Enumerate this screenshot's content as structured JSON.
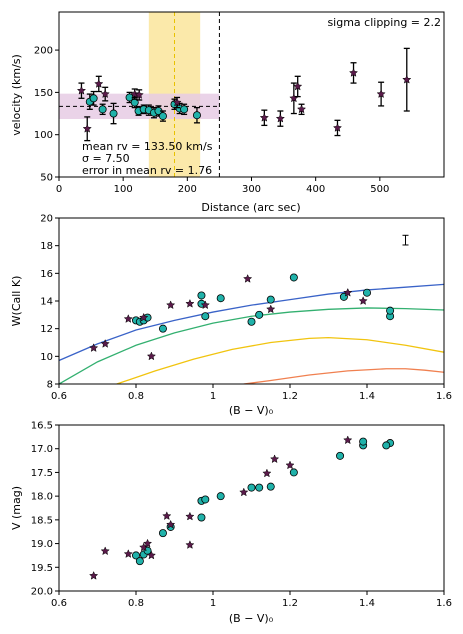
{
  "chart_data": [
    {
      "type": "scatter",
      "title": "",
      "xlabel": "Distance (arc sec)",
      "ylabel": "velocity (km/s)",
      "xlim": [
        0,
        600
      ],
      "ylim": [
        50,
        245
      ],
      "xticks": [
        0,
        100,
        200,
        300,
        400,
        500
      ],
      "yticks": [
        50,
        100,
        150,
        200
      ],
      "annotations": {
        "top_right": "sigma clipping = 2.2",
        "stats": [
          "mean rv = 133.50 km/s",
          "σ = 7.50",
          "error in mean rv = 1.76"
        ]
      },
      "mean_rv": 133.5,
      "sigma": 7.5,
      "band_low": 118.5,
      "band_high": 148.5,
      "vspan": [
        140,
        220
      ],
      "vline_mean": 180,
      "vline_cut": 250,
      "colors": {
        "circle": "#20b2aa",
        "star": "#5a1a4a",
        "band": "#e6cbe4",
        "vspan": "#fbe7a1",
        "vline": "#e8c200",
        "edge": "#000000"
      },
      "series": [
        {
          "marker": "circle",
          "points": [
            [
              48,
              139,
              9
            ],
            [
              54,
              143,
              8
            ],
            [
              68,
              130,
              6
            ],
            [
              85,
              125,
              12
            ],
            [
              110,
              144,
              6
            ],
            [
              118,
              138,
              6
            ],
            [
              124,
              128,
              5
            ],
            [
              132,
              130,
              5
            ],
            [
              140,
              129,
              6
            ],
            [
              148,
              126,
              6
            ],
            [
              155,
              128,
              6
            ],
            [
              162,
              122,
              6
            ],
            [
              180,
              136,
              6
            ],
            [
              188,
              131,
              6
            ],
            [
              195,
              130,
              6
            ],
            [
              215,
              123,
              9
            ]
          ]
        },
        {
          "marker": "star",
          "points": [
            [
              35,
              152,
              9
            ],
            [
              44,
              107,
              14
            ],
            [
              62,
              160,
              9
            ],
            [
              72,
              148,
              8
            ],
            [
              118,
              148,
              6
            ],
            [
              125,
              147,
              6
            ],
            [
              184,
              138,
              6
            ],
            [
              320,
              120,
              9
            ],
            [
              345,
              119,
              9
            ],
            [
              366,
              143,
              18
            ],
            [
              372,
              157,
              12
            ],
            [
              378,
              130,
              6
            ],
            [
              434,
              108,
              9
            ],
            [
              459,
              173,
              12
            ],
            [
              502,
              148,
              14
            ],
            [
              542,
              165,
              37
            ]
          ]
        }
      ]
    },
    {
      "type": "scatter",
      "title": "",
      "xlabel": "(B − V)₀",
      "ylabel": "W(Call K)",
      "xlim": [
        0.6,
        1.6
      ],
      "ylim": [
        8,
        20
      ],
      "xticks": [
        0.6,
        0.8,
        1.0,
        1.2,
        1.4,
        1.6
      ],
      "yticks": [
        8,
        10,
        12,
        14,
        16,
        18,
        20
      ],
      "errorbar_point": [
        1.5,
        18.4,
        0.35
      ],
      "curves": [
        {
          "color": "#3a63c8",
          "points": [
            [
              0.6,
              9.7
            ],
            [
              0.7,
              10.9
            ],
            [
              0.8,
              11.9
            ],
            [
              0.9,
              12.6
            ],
            [
              1.0,
              13.2
            ],
            [
              1.1,
              13.7
            ],
            [
              1.2,
              14.1
            ],
            [
              1.3,
              14.5
            ],
            [
              1.4,
              14.8
            ],
            [
              1.5,
              15.0
            ],
            [
              1.6,
              15.2
            ]
          ]
        },
        {
          "color": "#33b070",
          "points": [
            [
              0.6,
              8.0
            ],
            [
              0.7,
              9.6
            ],
            [
              0.8,
              10.8
            ],
            [
              0.9,
              11.7
            ],
            [
              1.0,
              12.4
            ],
            [
              1.1,
              12.9
            ],
            [
              1.2,
              13.2
            ],
            [
              1.3,
              13.4
            ],
            [
              1.4,
              13.5
            ],
            [
              1.5,
              13.45
            ],
            [
              1.6,
              13.35
            ]
          ]
        },
        {
          "color": "#f1c40f",
          "points": [
            [
              0.75,
              8.0
            ],
            [
              0.85,
              8.95
            ],
            [
              0.95,
              9.8
            ],
            [
              1.05,
              10.5
            ],
            [
              1.15,
              11.0
            ],
            [
              1.25,
              11.3
            ],
            [
              1.3,
              11.35
            ],
            [
              1.4,
              11.2
            ],
            [
              1.5,
              10.8
            ],
            [
              1.6,
              10.3
            ]
          ]
        },
        {
          "color": "#f08050",
          "points": [
            [
              1.08,
              8.0
            ],
            [
              1.15,
              8.25
            ],
            [
              1.25,
              8.65
            ],
            [
              1.35,
              8.95
            ],
            [
              1.45,
              9.1
            ],
            [
              1.5,
              9.1
            ],
            [
              1.55,
              9.0
            ],
            [
              1.6,
              8.85
            ]
          ]
        }
      ],
      "series": [
        {
          "marker": "circle",
          "points": [
            [
              0.8,
              12.6
            ],
            [
              0.81,
              12.5
            ],
            [
              0.82,
              12.6
            ],
            [
              0.83,
              12.8
            ],
            [
              0.87,
              12.0
            ],
            [
              0.97,
              14.4
            ],
            [
              0.97,
              13.8
            ],
            [
              0.98,
              12.9
            ],
            [
              1.02,
              14.2
            ],
            [
              1.1,
              12.5
            ],
            [
              1.12,
              13.0
            ],
            [
              1.15,
              14.1
            ],
            [
              1.21,
              15.7
            ],
            [
              1.34,
              14.3
            ],
            [
              1.4,
              14.6
            ],
            [
              1.46,
              12.9
            ],
            [
              1.46,
              13.3
            ]
          ]
        },
        {
          "marker": "star",
          "points": [
            [
              0.69,
              10.6
            ],
            [
              0.72,
              10.9
            ],
            [
              0.78,
              12.7
            ],
            [
              0.82,
              12.8
            ],
            [
              0.84,
              10.0
            ],
            [
              0.89,
              13.7
            ],
            [
              0.94,
              13.8
            ],
            [
              0.98,
              13.7
            ],
            [
              1.09,
              15.6
            ],
            [
              1.15,
              13.4
            ],
            [
              1.35,
              14.6
            ],
            [
              1.39,
              14.0
            ]
          ]
        }
      ]
    },
    {
      "type": "scatter",
      "title": "",
      "xlabel": "(B − V)₀",
      "ylabel": "V (mag)",
      "xlim": [
        0.6,
        1.6
      ],
      "ylim": [
        20.0,
        16.5
      ],
      "yinverted": true,
      "xticks": [
        0.6,
        0.8,
        1.0,
        1.2,
        1.4,
        1.6
      ],
      "yticks": [
        16.5,
        17.0,
        17.5,
        18.0,
        18.5,
        19.0,
        19.5,
        20.0
      ],
      "series": [
        {
          "marker": "circle",
          "points": [
            [
              0.8,
              19.25
            ],
            [
              0.81,
              19.37
            ],
            [
              0.82,
              19.23
            ],
            [
              0.83,
              19.15
            ],
            [
              0.87,
              18.78
            ],
            [
              0.89,
              18.65
            ],
            [
              0.97,
              18.1
            ],
            [
              0.98,
              18.07
            ],
            [
              0.97,
              18.45
            ],
            [
              1.02,
              18.0
            ],
            [
              1.1,
              17.82
            ],
            [
              1.12,
              17.82
            ],
            [
              1.15,
              17.8
            ],
            [
              1.21,
              17.5
            ],
            [
              1.33,
              17.15
            ],
            [
              1.39,
              16.93
            ],
            [
              1.39,
              16.85
            ],
            [
              1.46,
              16.88
            ],
            [
              1.45,
              16.93
            ]
          ]
        },
        {
          "marker": "star",
          "points": [
            [
              0.69,
              19.68
            ],
            [
              0.72,
              19.16
            ],
            [
              0.78,
              19.22
            ],
            [
              0.82,
              19.08
            ],
            [
              0.84,
              19.25
            ],
            [
              0.83,
              19.0
            ],
            [
              0.88,
              18.42
            ],
            [
              0.89,
              18.6
            ],
            [
              0.94,
              18.43
            ],
            [
              0.94,
              19.03
            ],
            [
              1.08,
              17.92
            ],
            [
              1.16,
              17.22
            ],
            [
              1.14,
              17.52
            ],
            [
              1.2,
              17.35
            ],
            [
              1.35,
              16.82
            ]
          ]
        }
      ]
    }
  ]
}
